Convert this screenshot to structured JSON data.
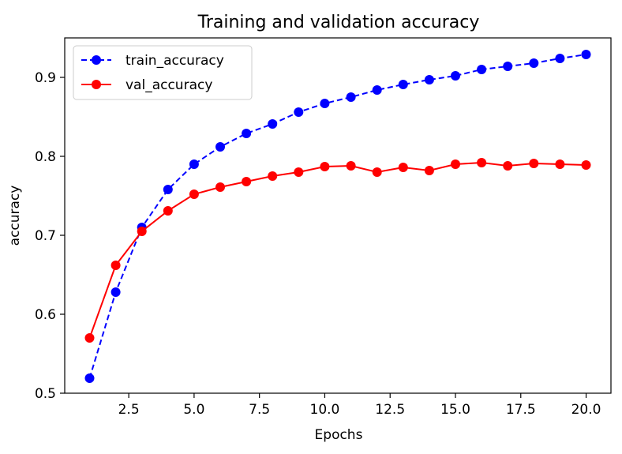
{
  "chart_data": {
    "type": "line",
    "title": "Training and validation accuracy",
    "xlabel": "Epochs",
    "ylabel": "accuracy",
    "xlim": [
      0.05,
      20.95
    ],
    "ylim": [
      0.5,
      0.95
    ],
    "x_ticks": [
      2.5,
      5.0,
      7.5,
      10.0,
      12.5,
      15.0,
      17.5,
      20.0
    ],
    "x_tick_labels": [
      "2.5",
      "5.0",
      "7.5",
      "10.0",
      "12.5",
      "15.0",
      "17.5",
      "20.0"
    ],
    "y_ticks": [
      0.5,
      0.6,
      0.7,
      0.8,
      0.9
    ],
    "y_tick_labels": [
      "0.5",
      "0.6",
      "0.7",
      "0.8",
      "0.9"
    ],
    "grid": false,
    "legend_position": "top-left",
    "x": [
      1,
      2,
      3,
      4,
      5,
      6,
      7,
      8,
      9,
      10,
      11,
      12,
      13,
      14,
      15,
      16,
      17,
      18,
      19,
      20
    ],
    "series": [
      {
        "name": "train_accuracy",
        "color": "#0000ff",
        "style": "dashed",
        "marker": "circle",
        "values": [
          0.519,
          0.628,
          0.71,
          0.758,
          0.79,
          0.812,
          0.829,
          0.841,
          0.856,
          0.867,
          0.875,
          0.884,
          0.891,
          0.897,
          0.902,
          0.91,
          0.914,
          0.918,
          0.924,
          0.929
        ]
      },
      {
        "name": "val_accuracy",
        "color": "#ff0000",
        "style": "solid",
        "marker": "circle",
        "values": [
          0.57,
          0.662,
          0.705,
          0.731,
          0.752,
          0.761,
          0.768,
          0.775,
          0.78,
          0.787,
          0.788,
          0.78,
          0.786,
          0.782,
          0.79,
          0.792,
          0.788,
          0.791,
          0.79,
          0.789
        ]
      }
    ]
  }
}
